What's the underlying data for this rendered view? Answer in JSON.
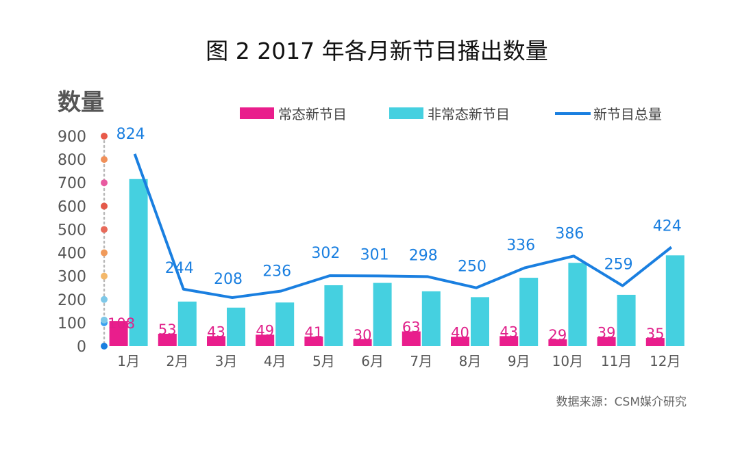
{
  "chart_data": {
    "type": "bar",
    "title": "图 2  2017 年各月新节目播出数量",
    "ylabel": "数量",
    "xlabel": "",
    "categories": [
      "1月",
      "2月",
      "3月",
      "4月",
      "5月",
      "6月",
      "7月",
      "8月",
      "9月",
      "10月",
      "11月",
      "12月"
    ],
    "ylim": [
      0,
      900
    ],
    "yticks": [
      0,
      100,
      200,
      300,
      400,
      500,
      600,
      700,
      800,
      900
    ],
    "grid": false,
    "legend_position": "top",
    "series": [
      {
        "name": "常态新节目",
        "type": "bar",
        "color": "#e91e8c",
        "values": [
          108,
          53,
          43,
          49,
          41,
          30,
          63,
          40,
          43,
          29,
          39,
          35
        ]
      },
      {
        "name": "非常态新节目",
        "type": "bar",
        "color": "#45d0e0",
        "values": [
          716,
          191,
          165,
          187,
          261,
          271,
          235,
          210,
          293,
          357,
          220,
          389
        ]
      },
      {
        "name": "新节目总量",
        "type": "line",
        "color": "#1a7fe0",
        "values": [
          824,
          244,
          208,
          236,
          302,
          301,
          298,
          250,
          336,
          386,
          259,
          424
        ]
      }
    ],
    "source": "数据来源：CSM媒介研究",
    "axis_dot_colors": [
      "#1a7fe0",
      "#3aa0f0",
      "#7ec8e8",
      "#f4b86a",
      "#f09a5a",
      "#e86a5a",
      "#e45a4a",
      "#e85aa0",
      "#f0905a",
      "#e85a4a",
      "#e85ab0"
    ]
  }
}
